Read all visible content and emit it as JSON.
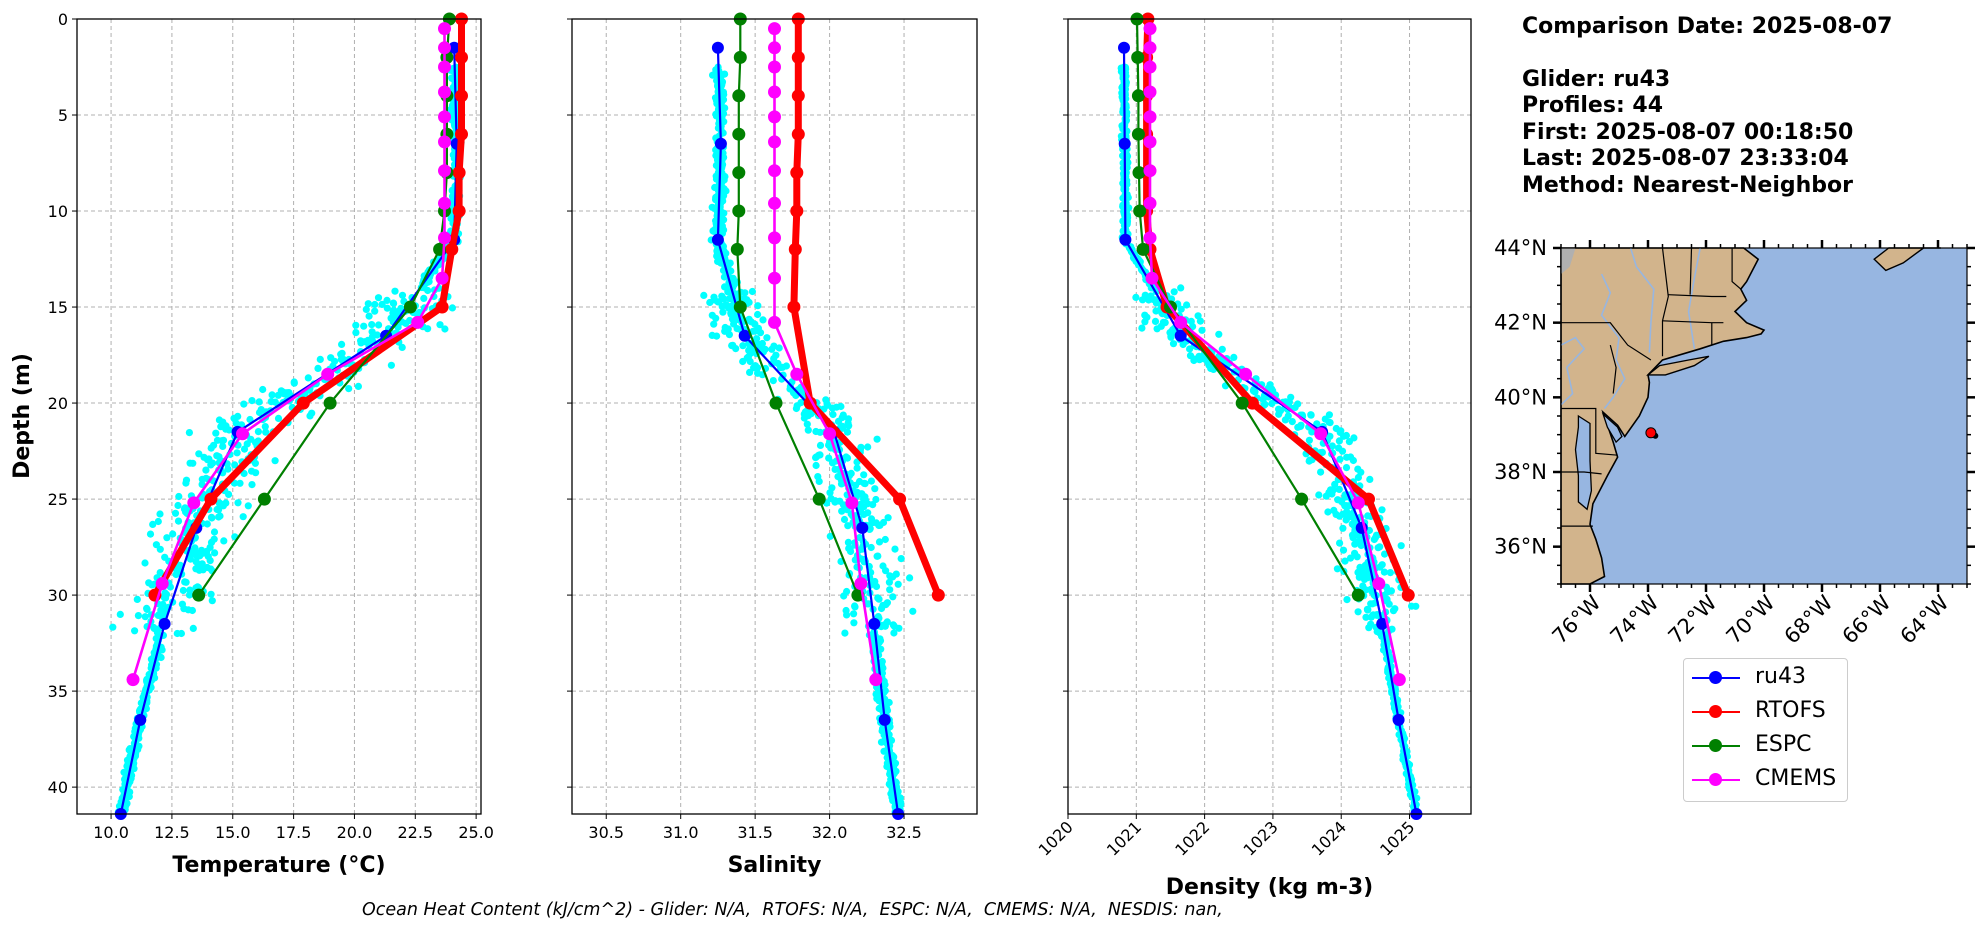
{
  "info": {
    "comparison_date": "Comparison Date: 2025-08-07",
    "glider": "Glider: ru43",
    "profiles": "Profiles: 44",
    "first": "First: 2025-08-07 00:18:50",
    "last": "Last: 2025-08-07 23:33:04",
    "method": "Method: Nearest-Neighbor"
  },
  "footer": "Ocean Heat Content (kJ/cm^2) - Glider: N/A,  RTOFS: N/A,  ESPC: N/A,  CMEMS: N/A,  NESDIS: nan,",
  "legend": [
    {
      "name": "ru43",
      "color": "#0000ff"
    },
    {
      "name": "RTOFS",
      "color": "#ff0000"
    },
    {
      "name": "ESPC",
      "color": "#008000"
    },
    {
      "name": "CMEMS",
      "color": "#ff00ff"
    }
  ],
  "colors": {
    "glider_scatter": "#00ffff",
    "grid": "#b0b0b0",
    "land": "#d2b48c",
    "ocean": "#97b6e1",
    "river": "#97b6e1",
    "lakes_gray": "#b0b0b0"
  },
  "chart_data": [
    {
      "type": "line",
      "panel": "temperature",
      "xlabel": "Temperature (°C)",
      "ylabel": "Depth (m)",
      "xlim": [
        8.6,
        25.2
      ],
      "ylim": [
        41.4,
        0
      ],
      "xticks": [
        10.0,
        12.5,
        15.0,
        17.5,
        20.0,
        22.5,
        25.0
      ],
      "xtick_labels": [
        "10.0",
        "12.5",
        "15.0",
        "17.5",
        "20.0",
        "22.5",
        "25.0"
      ],
      "yticks": [
        0,
        5,
        10,
        15,
        20,
        25,
        30,
        35,
        40
      ],
      "grid": true,
      "scatter_note": "cyan glider observations (ru43 raw profiles)",
      "series": [
        {
          "name": "ru43",
          "depth": [
            1.5,
            6.5,
            11.5,
            16.5,
            21.5,
            26.5,
            31.5,
            36.5,
            41.4
          ],
          "values": [
            24.1,
            24.2,
            24.1,
            21.3,
            15.2,
            13.5,
            12.2,
            11.2,
            10.4
          ]
        },
        {
          "name": "RTOFS",
          "depth": [
            0,
            2,
            4,
            6,
            8,
            10,
            12,
            15,
            20,
            25,
            30
          ],
          "values": [
            24.4,
            24.4,
            24.4,
            24.4,
            24.3,
            24.3,
            24.0,
            23.6,
            17.9,
            14.1,
            11.8
          ]
        },
        {
          "name": "ESPC",
          "depth": [
            0,
            2,
            4,
            6,
            8,
            10,
            12,
            15,
            20,
            25,
            30
          ],
          "values": [
            23.9,
            23.8,
            23.8,
            23.8,
            23.8,
            23.7,
            23.5,
            22.3,
            19.0,
            16.3,
            13.6
          ]
        },
        {
          "name": "CMEMS",
          "depth": [
            0.5,
            1.5,
            2.5,
            3.8,
            5.1,
            6.4,
            7.9,
            9.6,
            11.4,
            13.5,
            15.8,
            18.5,
            21.6,
            25.2,
            29.4,
            34.4
          ],
          "values": [
            23.7,
            23.7,
            23.7,
            23.7,
            23.7,
            23.7,
            23.7,
            23.7,
            23.7,
            23.6,
            22.6,
            18.9,
            15.4,
            13.4,
            12.1,
            10.9
          ]
        }
      ]
    },
    {
      "type": "line",
      "panel": "salinity",
      "xlabel": "Salinity",
      "ylabel": "",
      "xlim": [
        30.27,
        32.99
      ],
      "ylim": [
        41.4,
        0
      ],
      "xticks": [
        30.5,
        31.0,
        31.5,
        32.0,
        32.5
      ],
      "xtick_labels": [
        "30.5",
        "31.0",
        "31.5",
        "32.0",
        "32.5"
      ],
      "yticks": [
        0,
        5,
        10,
        15,
        20,
        25,
        30,
        35,
        40
      ],
      "grid": true,
      "series": [
        {
          "name": "ru43",
          "depth": [
            1.5,
            6.5,
            11.5,
            16.5,
            21.5,
            26.5,
            31.5,
            36.5,
            41.4
          ],
          "values": [
            31.25,
            31.27,
            31.25,
            31.43,
            32.03,
            32.22,
            32.3,
            32.37,
            32.46
          ]
        },
        {
          "name": "RTOFS",
          "depth": [
            0,
            2,
            4,
            6,
            8,
            10,
            12,
            15,
            20,
            25,
            30
          ],
          "values": [
            31.79,
            31.79,
            31.79,
            31.79,
            31.78,
            31.78,
            31.77,
            31.76,
            31.87,
            32.47,
            32.73
          ]
        },
        {
          "name": "ESPC",
          "depth": [
            0,
            2,
            4,
            6,
            8,
            10,
            12,
            15,
            20,
            25,
            30
          ],
          "values": [
            31.4,
            31.4,
            31.39,
            31.39,
            31.39,
            31.39,
            31.38,
            31.4,
            31.64,
            31.93,
            32.19
          ]
        },
        {
          "name": "CMEMS",
          "depth": [
            0.5,
            1.5,
            2.5,
            3.8,
            5.1,
            6.4,
            7.9,
            9.6,
            11.4,
            13.5,
            15.8,
            18.5,
            21.6,
            25.2,
            29.4,
            34.4
          ],
          "values": [
            31.63,
            31.63,
            31.63,
            31.63,
            31.63,
            31.63,
            31.63,
            31.63,
            31.63,
            31.63,
            31.63,
            31.78,
            32.0,
            32.15,
            32.21,
            32.31
          ]
        }
      ]
    },
    {
      "type": "line",
      "panel": "density",
      "xlabel": "Density (kg m-3)",
      "ylabel": "",
      "xlim": [
        1020.0,
        1025.9
      ],
      "ylim": [
        41.4,
        0
      ],
      "xticks": [
        1020,
        1021,
        1022,
        1023,
        1024,
        1025
      ],
      "xtick_labels": [
        "1020",
        "1021",
        "1022",
        "1023",
        "1024",
        "1025"
      ],
      "yticks": [
        0,
        5,
        10,
        15,
        20,
        25,
        30,
        35,
        40
      ],
      "grid": true,
      "series": [
        {
          "name": "ru43",
          "depth": [
            1.5,
            6.5,
            11.5,
            16.5,
            21.5,
            26.5,
            31.5,
            36.5,
            41.4
          ],
          "values": [
            1020.82,
            1020.83,
            1020.84,
            1021.65,
            1023.72,
            1024.3,
            1024.6,
            1024.84,
            1025.1
          ]
        },
        {
          "name": "RTOFS",
          "depth": [
            0,
            2,
            4,
            6,
            8,
            10,
            12,
            15,
            20,
            25,
            30
          ],
          "values": [
            1021.17,
            1021.15,
            1021.15,
            1021.15,
            1021.15,
            1021.15,
            1021.2,
            1021.45,
            1022.7,
            1024.4,
            1024.98
          ]
        },
        {
          "name": "ESPC",
          "depth": [
            0,
            2,
            4,
            6,
            8,
            10,
            12,
            15,
            20,
            25,
            30
          ],
          "values": [
            1021.01,
            1021.02,
            1021.03,
            1021.03,
            1021.04,
            1021.05,
            1021.1,
            1021.5,
            1022.55,
            1023.42,
            1024.25
          ]
        },
        {
          "name": "CMEMS",
          "depth": [
            0.5,
            1.5,
            2.5,
            3.8,
            5.1,
            6.4,
            7.9,
            9.6,
            11.4,
            13.5,
            15.8,
            18.5,
            21.6,
            25.2,
            29.4,
            34.4
          ],
          "values": [
            1021.2,
            1021.2,
            1021.2,
            1021.2,
            1021.2,
            1021.2,
            1021.2,
            1021.2,
            1021.2,
            1021.23,
            1021.65,
            1022.6,
            1023.7,
            1024.25,
            1024.55,
            1024.85
          ]
        }
      ]
    },
    {
      "type": "map",
      "panel": "location",
      "lon_range": [
        -77.0,
        -63.0
      ],
      "lat_range": [
        35.0,
        44.0
      ],
      "lat_ticks": [
        36,
        38,
        40,
        42,
        44
      ],
      "lat_tick_labels": [
        "36°N",
        "38°N",
        "40°N",
        "42°N",
        "44°N"
      ],
      "lon_ticks": [
        -76,
        -74,
        -72,
        -70,
        -68,
        -66,
        -64
      ],
      "lon_tick_labels": [
        "76°W",
        "74°W",
        "72°W",
        "70°W",
        "68°W",
        "66°W",
        "64°W"
      ],
      "glider_track": [
        [
          -73.85,
          39.02
        ],
        [
          -73.75,
          38.97
        ]
      ],
      "glider_marker": {
        "lon": -73.9,
        "lat": 39.05,
        "color": "#ff0000"
      }
    }
  ]
}
